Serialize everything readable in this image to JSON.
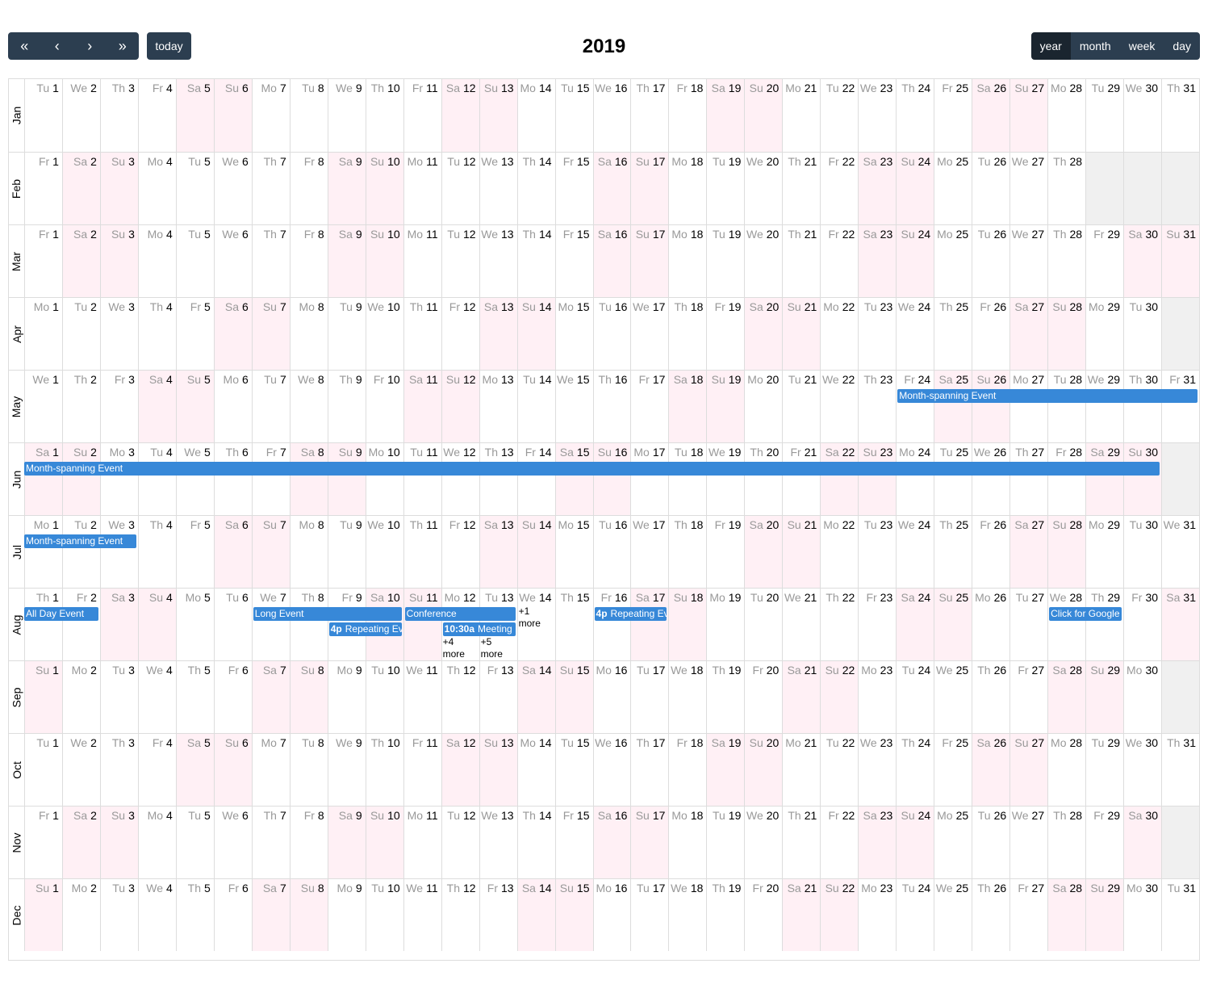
{
  "toolbar": {
    "prev_year": "«",
    "prev": "‹",
    "next": "›",
    "next_year": "»",
    "today": "today",
    "title": "2019",
    "views": [
      "year",
      "month",
      "week",
      "day"
    ],
    "active_view": "year"
  },
  "day_names": [
    "Mo",
    "Tu",
    "We",
    "Th",
    "Fr",
    "Sa",
    "Su"
  ],
  "months": [
    {
      "label": "Jan",
      "start_weekday": 1,
      "days": 31
    },
    {
      "label": "Feb",
      "start_weekday": 4,
      "days": 28
    },
    {
      "label": "Mar",
      "start_weekday": 4,
      "days": 31
    },
    {
      "label": "Apr",
      "start_weekday": 0,
      "days": 30
    },
    {
      "label": "May",
      "start_weekday": 2,
      "days": 31
    },
    {
      "label": "Jun",
      "start_weekday": 5,
      "days": 30
    },
    {
      "label": "Jul",
      "start_weekday": 0,
      "days": 31
    },
    {
      "label": "Aug",
      "start_weekday": 3,
      "days": 31
    },
    {
      "label": "Sep",
      "start_weekday": 6,
      "days": 30
    },
    {
      "label": "Oct",
      "start_weekday": 1,
      "days": 31
    },
    {
      "label": "Nov",
      "start_weekday": 4,
      "days": 30
    },
    {
      "label": "Dec",
      "start_weekday": 6,
      "days": 31
    }
  ],
  "events": [
    {
      "title": "Month-spanning Event",
      "month": 4,
      "start_day": 24,
      "end_day": 31,
      "lane": 0
    },
    {
      "title": "Month-spanning Event",
      "month": 5,
      "start_day": 1,
      "end_day": 30,
      "lane": 0
    },
    {
      "title": "Month-spanning Event",
      "month": 6,
      "start_day": 1,
      "end_day": 3,
      "lane": 0
    },
    {
      "title": "All Day Event",
      "month": 7,
      "start_day": 1,
      "end_day": 2,
      "lane": 0
    },
    {
      "title": "Long Event",
      "month": 7,
      "start_day": 7,
      "end_day": 10,
      "lane": 0
    },
    {
      "title": "Conference",
      "month": 7,
      "start_day": 11,
      "end_day": 13,
      "lane": 0
    },
    {
      "time": "4p",
      "title": "Repeating Event",
      "month": 7,
      "start_day": 9,
      "end_day": 10,
      "lane": 1
    },
    {
      "time": "10:30a",
      "title": "Meeting",
      "month": 7,
      "start_day": 12,
      "end_day": 13,
      "lane": 1
    },
    {
      "time": "4p",
      "title": "Repeating Event",
      "month": 7,
      "start_day": 16,
      "end_day": 17,
      "lane": 0
    },
    {
      "title": "Click for Google",
      "month": 7,
      "start_day": 28,
      "end_day": 29,
      "lane": 0
    }
  ],
  "more_links": [
    {
      "month": 7,
      "day": 14,
      "text": "+1 more",
      "lane": 0
    },
    {
      "month": 7,
      "day": 12,
      "text": "+4 more",
      "lane": 2
    },
    {
      "month": 7,
      "day": 13,
      "text": "+5 more",
      "lane": 2
    }
  ]
}
